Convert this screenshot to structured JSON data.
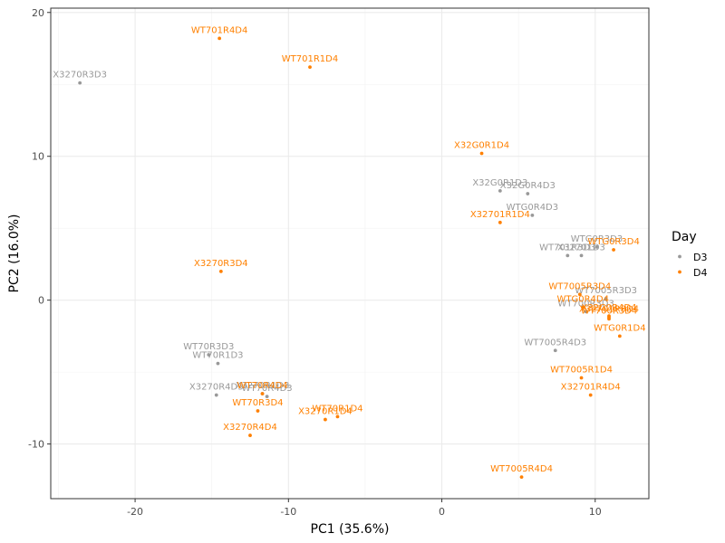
{
  "chart_data": {
    "type": "scatter",
    "xlabel": "PC1 (35.6%)",
    "ylabel": "PC2 (16.0%)",
    "xlim": [
      -25.5,
      13.5
    ],
    "ylim": [
      -13.8,
      20.3
    ],
    "xticks": [
      -20,
      -10,
      0,
      10
    ],
    "yticks": [
      -10,
      0,
      10,
      20
    ],
    "grid": true,
    "legend": {
      "title": "Day",
      "position": "right",
      "entries": [
        "D3",
        "D4"
      ]
    },
    "colors": {
      "D3": "#999999",
      "D4": "#FF8000"
    },
    "points": [
      {
        "label": "X3270R3D3",
        "group": "D3",
        "x": -23.6,
        "y": 15.1
      },
      {
        "label": "X32G0R1D3",
        "group": "D3",
        "x": 3.8,
        "y": 7.6
      },
      {
        "label": "X32G0R4D3",
        "group": "D3",
        "x": 5.6,
        "y": 7.4
      },
      {
        "label": "WTG0R4D3",
        "group": "D3",
        "x": 5.9,
        "y": 5.9
      },
      {
        "label": "WTG0R3D3",
        "group": "D3",
        "x": 10.1,
        "y": 3.7
      },
      {
        "label": "WT701R3D3",
        "group": "D3",
        "x": 8.2,
        "y": 3.1
      },
      {
        "label": "X32701D3",
        "group": "D3",
        "x": 9.1,
        "y": 3.1
      },
      {
        "label": "WT7005R3D3",
        "group": "D3",
        "x": 10.7,
        "y": 0.1
      },
      {
        "label": "WT700R3D3",
        "group": "D3",
        "x": 9.4,
        "y": -0.8
      },
      {
        "label": "WT7005R4D3",
        "group": "D3",
        "x": 7.4,
        "y": -3.5
      },
      {
        "label": "WT70R3D3",
        "group": "D3",
        "x": -15.2,
        "y": -3.8
      },
      {
        "label": "WT70R1D3",
        "group": "D3",
        "x": -14.6,
        "y": -4.4
      },
      {
        "label": "X3270R1D3",
        "group": "D3",
        "x": -11.7,
        "y": -6.5
      },
      {
        "label": "X3270R4D3",
        "group": "D3",
        "x": -14.7,
        "y": -6.6
      },
      {
        "label": "WT70R4D3",
        "group": "D3",
        "x": -11.4,
        "y": -6.7
      },
      {
        "label": "WT701R4D4",
        "group": "D4",
        "x": -14.5,
        "y": 18.2
      },
      {
        "label": "WT701R1D4",
        "group": "D4",
        "x": -8.6,
        "y": 16.2
      },
      {
        "label": "X32G0R1D4",
        "group": "D4",
        "x": 2.6,
        "y": 10.2
      },
      {
        "label": "X32701R1D4",
        "group": "D4",
        "x": 3.8,
        "y": 5.4
      },
      {
        "label": "WTG0R3D4",
        "group": "D4",
        "x": 11.2,
        "y": 3.5
      },
      {
        "label": "X3270R3D4",
        "group": "D4",
        "x": -14.4,
        "y": 2.0
      },
      {
        "label": "WT7005R3D4",
        "group": "D4",
        "x": 9.0,
        "y": 0.4
      },
      {
        "label": "WTG0R4D4",
        "group": "D4",
        "x": 9.2,
        "y": -0.5
      },
      {
        "label": "X32G0R4D4",
        "group": "D4",
        "x": 10.9,
        "y": -1.1
      },
      {
        "label": "WT700R3D4",
        "group": "D4",
        "x": 10.9,
        "y": -1.3
      },
      {
        "label": "X32701R3D4",
        "group": "D4",
        "x": 10.9,
        "y": -1.2
      },
      {
        "label": "WTG0R1D4",
        "group": "D4",
        "x": 11.6,
        "y": -2.5
      },
      {
        "label": "WT7005R1D4",
        "group": "D4",
        "x": 9.1,
        "y": -5.4
      },
      {
        "label": "X32701R4D4",
        "group": "D4",
        "x": 9.7,
        "y": -6.6
      },
      {
        "label": "WT70R3D4",
        "group": "D4",
        "x": -12.0,
        "y": -7.7
      },
      {
        "label": "WT70R4D4",
        "group": "D4",
        "x": -11.7,
        "y": -6.5
      },
      {
        "label": "X3270R1D4",
        "group": "D4",
        "x": -7.6,
        "y": -8.3
      },
      {
        "label": "WT70R1D4",
        "group": "D4",
        "x": -6.8,
        "y": -8.1
      },
      {
        "label": "X3270R4D4",
        "group": "D4",
        "x": -12.5,
        "y": -9.4
      },
      {
        "label": "WT7005R4D4",
        "group": "D4",
        "x": 5.2,
        "y": -12.3
      }
    ]
  }
}
